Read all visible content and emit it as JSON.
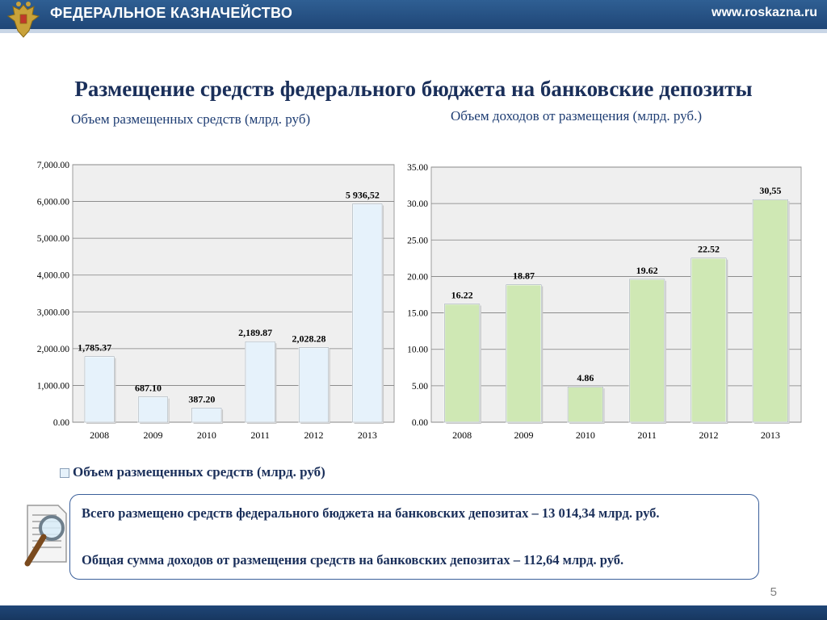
{
  "header": {
    "brand": "ФЕДЕРАЛЬНОЕ КАЗНАЧЕЙСТВО",
    "site": "www.roskazna.ru",
    "emblem_icon": "double-headed-eagle-emblem-icon"
  },
  "title": "Размещение средств федерального бюджета на банковские депозиты",
  "left_subtitle": "Объем размещенных средств (млрд. руб)",
  "right_subtitle": "Объем доходов от размещения (млрд. руб.)",
  "chart_data": [
    {
      "type": "bar",
      "categories": [
        "2008",
        "2009",
        "2010",
        "2011",
        "2012",
        "2013"
      ],
      "values": [
        1785.37,
        687.1,
        387.2,
        2189.87,
        2028.28,
        5936.52
      ],
      "value_labels": [
        "1,785.37",
        "687.10",
        "387.20",
        "2,189.87",
        "2,028.28",
        "5 936,52"
      ],
      "yticks": [
        "0.00",
        "1,000.00",
        "2,000.00",
        "3,000.00",
        "4,000.00",
        "5,000.00",
        "6,000.00",
        "7,000.00"
      ],
      "ylim": [
        0,
        7000
      ],
      "grid": true,
      "bar_color": "#e6f2fb",
      "legend": {
        "label": "Объем размещенных средств (млрд. руб)",
        "position": "bottom-left"
      }
    },
    {
      "type": "bar",
      "categories": [
        "2008",
        "2009",
        "2010",
        "2011",
        "2012",
        "2013"
      ],
      "values": [
        16.22,
        18.87,
        4.86,
        19.62,
        22.52,
        30.55
      ],
      "value_labels": [
        "16.22",
        "18.87",
        "4.86",
        "19.62",
        "22.52",
        "30,55"
      ],
      "yticks": [
        "0.00",
        "5.00",
        "10.00",
        "15.00",
        "20.00",
        "25.00",
        "30.00",
        "35.00"
      ],
      "ylim": [
        0,
        35
      ],
      "grid": true,
      "bar_color": "#cfe8b4"
    }
  ],
  "legend_label": "Объем размещенных средств (млрд. руб)",
  "summary": {
    "line1": "Всего размещено средств  федерального бюджета на банковских депозитах – 13 014,34 млрд. руб.",
    "line2": "Общая сумма доходов от размещения средств на банковских депозитах – 112,64 млрд. руб.",
    "icon": "document-magnifier-icon"
  },
  "page_number": "5"
}
